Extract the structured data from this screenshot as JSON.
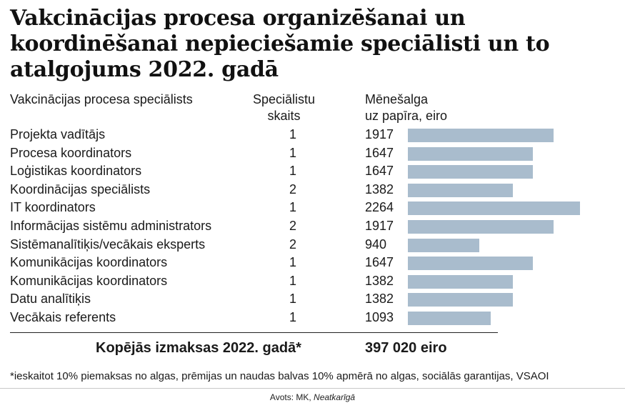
{
  "title": "Vakcinācijas procesa organizēšanai un koordinēšanai nepieciešamie speciālisti un to atalgojums 2022. gadā",
  "headers": {
    "name": "Vakcinācijas procesa speciālists",
    "count_line1": "Speciālistu",
    "count_line2": "skaits",
    "salary_line1": "Mēnešalga",
    "salary_line2": "uz papīra, eiro"
  },
  "chart_data": {
    "type": "bar",
    "orientation": "horizontal",
    "categories": [
      "Projekta vadītājs",
      "Procesa koordinators",
      "Loģistikas koordinators",
      "Koordinācijas speciālists",
      "IT koordinators",
      "Informācijas sistēmu administrators",
      "Sistēmanalītiķis/vecākais eksperts",
      "Komunikācijas koordinators",
      "Komunikācijas koordinators",
      "Datu analītiķis",
      "Vecākais referents"
    ],
    "counts": [
      1,
      1,
      1,
      2,
      1,
      2,
      2,
      1,
      1,
      1,
      1
    ],
    "values": [
      1917,
      1647,
      1647,
      1382,
      2264,
      1917,
      940,
      1647,
      1382,
      1382,
      1093
    ],
    "bar_color": "#a9bccd",
    "xlim": [
      0,
      2264
    ]
  },
  "total": {
    "label": "Kopējās izmaksas 2022. gadā*",
    "value": "397 020 eiro"
  },
  "footnote": "*ieskaitot 10% piemaksas no algas, prēmijas un naudas balvas 10% apmērā no algas, sociālās garantijas, VSAOI",
  "source": {
    "prefix": "Avots: MK, ",
    "italic": "Neatkarīgā"
  }
}
